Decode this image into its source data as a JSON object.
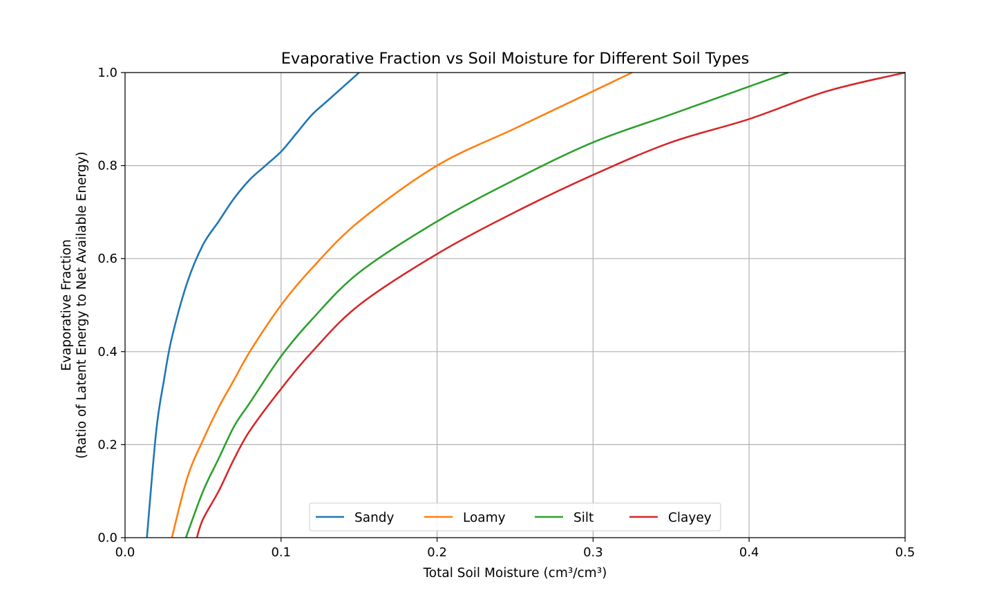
{
  "chart_data": {
    "type": "line",
    "title": "Evaporative Fraction vs Soil Moisture for Different Soil Types",
    "xlabel": "Total Soil Moisture (cm³/cm³)",
    "ylabel_line1": "Evaporative Fraction",
    "ylabel_line2": "(Ratio of Latent Energy to Net Available Energy)",
    "xlim": [
      0.0,
      0.5
    ],
    "ylim": [
      0.0,
      1.0
    ],
    "xticks": [
      "0.0",
      "0.1",
      "0.2",
      "0.3",
      "0.4",
      "0.5"
    ],
    "yticks": [
      "0.0",
      "0.2",
      "0.4",
      "0.6",
      "0.8",
      "1.0"
    ],
    "grid": true,
    "legend_position": "bottom-center",
    "series": [
      {
        "name": "Sandy",
        "color": "#1f77b4",
        "x": [
          0.014,
          0.02,
          0.025,
          0.03,
          0.04,
          0.05,
          0.06,
          0.07,
          0.08,
          0.09,
          0.1,
          0.11,
          0.12,
          0.13,
          0.14,
          0.15
        ],
        "y": [
          0.0,
          0.23,
          0.34,
          0.43,
          0.55,
          0.63,
          0.68,
          0.73,
          0.77,
          0.8,
          0.83,
          0.87,
          0.91,
          0.94,
          0.97,
          1.0
        ]
      },
      {
        "name": "Loamy",
        "color": "#ff7f0e",
        "x": [
          0.03,
          0.04,
          0.05,
          0.06,
          0.07,
          0.08,
          0.1,
          0.12,
          0.15,
          0.2,
          0.25,
          0.3,
          0.325
        ],
        "y": [
          0.0,
          0.13,
          0.21,
          0.28,
          0.34,
          0.4,
          0.5,
          0.58,
          0.68,
          0.8,
          0.88,
          0.96,
          1.0
        ]
      },
      {
        "name": "Silt",
        "color": "#2ca02c",
        "x": [
          0.039,
          0.05,
          0.06,
          0.07,
          0.08,
          0.1,
          0.12,
          0.15,
          0.2,
          0.25,
          0.3,
          0.35,
          0.4,
          0.425
        ],
        "y": [
          0.0,
          0.1,
          0.17,
          0.24,
          0.29,
          0.39,
          0.47,
          0.57,
          0.68,
          0.77,
          0.85,
          0.91,
          0.97,
          1.0
        ]
      },
      {
        "name": "Clayey",
        "color": "#d62728",
        "x": [
          0.046,
          0.05,
          0.06,
          0.07,
          0.08,
          0.1,
          0.12,
          0.15,
          0.2,
          0.25,
          0.3,
          0.35,
          0.4,
          0.45,
          0.5
        ],
        "y": [
          0.0,
          0.04,
          0.1,
          0.17,
          0.23,
          0.32,
          0.4,
          0.5,
          0.61,
          0.7,
          0.78,
          0.85,
          0.9,
          0.96,
          1.0
        ]
      }
    ]
  }
}
